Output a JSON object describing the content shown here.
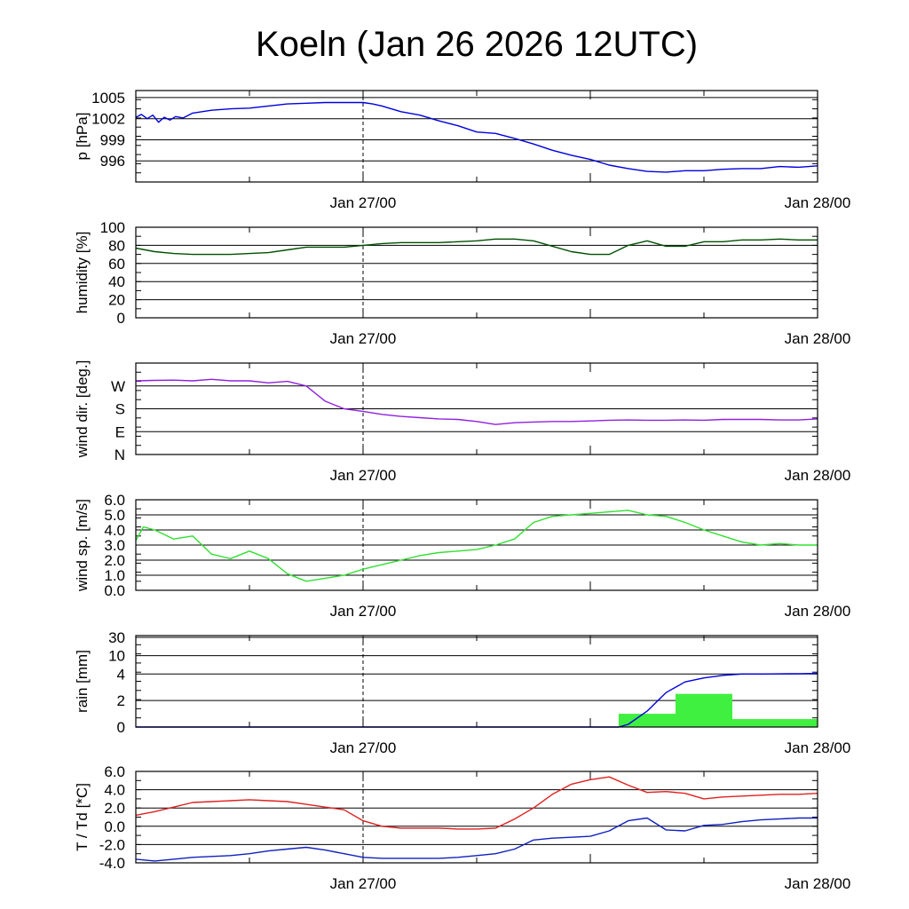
{
  "chart_data": {
    "type": "line",
    "title": "Koeln (Jan 26 2026 12UTC)",
    "x_tick_labels": [
      "Jan 27/00",
      "Jan 28/00"
    ],
    "x_range_hours": [
      0,
      36
    ],
    "x_marker_hours": 12,
    "panels": [
      {
        "id": "pressure",
        "ylabel": "p [hPa]",
        "y_range": [
          993,
          1006
        ],
        "y_ticks": [
          {
            "v": 996,
            "label": "996"
          },
          {
            "v": 999,
            "label": "999"
          },
          {
            "v": 1002,
            "label": "1002"
          },
          {
            "v": 1005,
            "label": "1005"
          }
        ],
        "series": [
          {
            "name": "p",
            "color": "#0000e0",
            "x": [
              0,
              0.3,
              0.6,
              0.9,
              1.2,
              1.5,
              1.8,
              2.1,
              2.5,
              3,
              4,
              5,
              6,
              7,
              8,
              9,
              10,
              11,
              12,
              12.5,
              13,
              14,
              15,
              16,
              17,
              18,
              19,
              20,
              21,
              22,
              23,
              24,
              25,
              26,
              27,
              28,
              29,
              30,
              31,
              32,
              33,
              34,
              35,
              36
            ],
            "values": [
              1002.2,
              1002.6,
              1002.0,
              1002.5,
              1001.5,
              1002.2,
              1001.8,
              1002.3,
              1002.1,
              1002.8,
              1003.2,
              1003.4,
              1003.5,
              1003.8,
              1004.1,
              1004.2,
              1004.3,
              1004.3,
              1004.3,
              1004.1,
              1003.8,
              1003.0,
              1002.5,
              1001.7,
              1001.0,
              1000.1,
              999.9,
              999.2,
              998.4,
              997.5,
              996.8,
              996.2,
              995.4,
              994.9,
              994.5,
              994.4,
              994.6,
              994.6,
              994.8,
              994.9,
              994.9,
              995.2,
              995.1,
              995.3
            ]
          }
        ]
      },
      {
        "id": "humidity",
        "ylabel": "humidity [%]",
        "y_range": [
          0,
          100
        ],
        "y_ticks": [
          {
            "v": 0,
            "label": "0"
          },
          {
            "v": 20,
            "label": "20"
          },
          {
            "v": 40,
            "label": "40"
          },
          {
            "v": 60,
            "label": "60"
          },
          {
            "v": 80,
            "label": "80"
          },
          {
            "v": 100,
            "label": "100"
          }
        ],
        "series": [
          {
            "name": "humidity",
            "color": "#005000",
            "x": [
              0,
              1,
              2,
              3,
              4,
              5,
              6,
              7,
              8,
              9,
              10,
              11,
              12,
              13,
              14,
              15,
              16,
              17,
              18,
              19,
              20,
              21,
              22,
              23,
              24,
              25,
              26,
              27,
              28,
              29,
              30,
              31,
              32,
              33,
              34,
              35,
              36
            ],
            "values": [
              77,
              73,
              71,
              70,
              70,
              70,
              71,
              72,
              75,
              78,
              78,
              78,
              80,
              82,
              83,
              83,
              83,
              84,
              85,
              87,
              87,
              85,
              79,
              73,
              70,
              70,
              80,
              85,
              79,
              79,
              84,
              84,
              86,
              86,
              87,
              86,
              86
            ]
          }
        ]
      },
      {
        "id": "wind_dir",
        "ylabel": "wind dir. [deg.]",
        "y_range": [
          0,
          360
        ],
        "y_ticks": [
          {
            "v": 0,
            "label": "N"
          },
          {
            "v": 90,
            "label": "E"
          },
          {
            "v": 180,
            "label": "S"
          },
          {
            "v": 270,
            "label": "W"
          }
        ],
        "series": [
          {
            "name": "wind direction",
            "color": "#9020e0",
            "x": [
              0,
              1,
              2,
              3,
              4,
              5,
              6,
              7,
              8,
              9,
              10,
              11,
              12,
              13,
              14,
              15,
              16,
              17,
              18,
              19,
              20,
              21,
              22,
              23,
              24,
              25,
              26,
              27,
              28,
              29,
              30,
              31,
              32,
              33,
              34,
              35,
              36
            ],
            "values": [
              290,
              292,
              293,
              290,
              296,
              290,
              290,
              282,
              288,
              270,
              210,
              180,
              170,
              158,
              150,
              145,
              140,
              138,
              130,
              118,
              125,
              128,
              130,
              130,
              132,
              135,
              136,
              135,
              135,
              136,
              135,
              138,
              138,
              138,
              136,
              136,
              140
            ]
          }
        ]
      },
      {
        "id": "wind_speed",
        "ylabel": "wind sp. [m/s]",
        "y_range": [
          0,
          6
        ],
        "y_ticks": [
          {
            "v": 0,
            "label": "0.0"
          },
          {
            "v": 1,
            "label": "1.0"
          },
          {
            "v": 2,
            "label": "2.0"
          },
          {
            "v": 3,
            "label": "3.0"
          },
          {
            "v": 4,
            "label": "4.0"
          },
          {
            "v": 5,
            "label": "5.0"
          },
          {
            "v": 6,
            "label": "6.0"
          }
        ],
        "series": [
          {
            "name": "wind speed",
            "color": "#30e030",
            "x": [
              0,
              0.4,
              1,
              2,
              3,
              3.5,
              4,
              5,
              6,
              7,
              8,
              9,
              10,
              10.5,
              11,
              12,
              13,
              14,
              15,
              16,
              17,
              18,
              19,
              20,
              21,
              22,
              23,
              24,
              25,
              26,
              27,
              28,
              29,
              30,
              31,
              32,
              33,
              34,
              35,
              36
            ],
            "values": [
              3.3,
              4.2,
              4.0,
              3.4,
              3.6,
              3.0,
              2.4,
              2.1,
              2.6,
              2.1,
              1.1,
              0.6,
              0.8,
              0.9,
              1.0,
              1.4,
              1.7,
              2.0,
              2.3,
              2.5,
              2.6,
              2.7,
              3.0,
              3.4,
              4.5,
              4.9,
              5.0,
              5.1,
              5.2,
              5.3,
              5.0,
              4.9,
              4.5,
              4.0,
              3.6,
              3.2,
              3.0,
              3.1,
              3.0,
              3.0
            ]
          }
        ]
      },
      {
        "id": "rain",
        "ylabel": "rain [mm]",
        "y_ticks": [
          {
            "v": 0,
            "label": "0"
          },
          {
            "v": 2,
            "label": "2"
          },
          {
            "v": 4,
            "label": "4"
          },
          {
            "v": 10,
            "label": "10"
          },
          {
            "v": 30,
            "label": "30"
          }
        ],
        "bars": [
          {
            "x0": 25.5,
            "x1": 28.5,
            "value": 1.0
          },
          {
            "x0": 28.5,
            "x1": 31.5,
            "value": 2.5
          },
          {
            "x0": 31.5,
            "x1": 36,
            "value": 0.6
          }
        ],
        "bar_color": "#40f040",
        "series": [
          {
            "name": "accumulated rain",
            "color": "#0000e0",
            "x": [
              0,
              24,
              25.5,
              26,
              27,
              28,
              29,
              30,
              31,
              32,
              33,
              34,
              35,
              36
            ],
            "values": [
              0,
              0,
              0,
              0.2,
              1.2,
              2.6,
              3.4,
              3.7,
              3.9,
              4.0,
              4.0,
              4.05,
              4.1,
              4.2
            ]
          }
        ]
      },
      {
        "id": "temperature",
        "ylabel": "T / Td [*C]",
        "y_range": [
          -4,
          6
        ],
        "y_ticks": [
          {
            "v": -4,
            "label": "-4.0"
          },
          {
            "v": -2,
            "label": "-2.0"
          },
          {
            "v": 0,
            "label": "0.0"
          },
          {
            "v": 2,
            "label": "2.0"
          },
          {
            "v": 4,
            "label": "4.0"
          },
          {
            "v": 6,
            "label": "6.0"
          }
        ],
        "series": [
          {
            "name": "T",
            "color": "#e02020",
            "x": [
              0,
              1,
              2,
              3,
              4,
              5,
              6,
              7,
              8,
              9,
              10,
              11,
              12,
              13,
              14,
              15,
              16,
              17,
              18,
              19,
              20,
              21,
              22,
              23,
              24,
              25,
              26,
              27,
              28,
              29,
              30,
              31,
              32,
              33,
              34,
              35,
              36
            ],
            "values": [
              1.2,
              1.6,
              2.1,
              2.6,
              2.7,
              2.8,
              2.9,
              2.8,
              2.7,
              2.4,
              2.1,
              1.8,
              0.6,
              0.0,
              -0.2,
              -0.2,
              -0.2,
              -0.3,
              -0.3,
              -0.2,
              0.8,
              2.0,
              3.5,
              4.6,
              5.1,
              5.4,
              4.5,
              3.7,
              3.8,
              3.6,
              3.0,
              3.2,
              3.3,
              3.4,
              3.5,
              3.5,
              3.6
            ]
          },
          {
            "name": "Td",
            "color": "#1020c0",
            "x": [
              0,
              1,
              2,
              3,
              4,
              5,
              6,
              7,
              8,
              9,
              10,
              11,
              12,
              13,
              14,
              15,
              16,
              17,
              18,
              19,
              20,
              21,
              22,
              23,
              24,
              25,
              26,
              27,
              28,
              29,
              30,
              31,
              32,
              33,
              34,
              35,
              36
            ],
            "values": [
              -3.6,
              -3.8,
              -3.6,
              -3.4,
              -3.3,
              -3.2,
              -3.0,
              -2.7,
              -2.5,
              -2.3,
              -2.6,
              -3.0,
              -3.4,
              -3.5,
              -3.5,
              -3.5,
              -3.5,
              -3.4,
              -3.2,
              -3.0,
              -2.5,
              -1.5,
              -1.3,
              -1.2,
              -1.1,
              -0.5,
              0.6,
              0.9,
              -0.4,
              -0.5,
              0.1,
              0.2,
              0.5,
              0.7,
              0.8,
              0.9,
              0.9
            ]
          }
        ]
      }
    ]
  }
}
